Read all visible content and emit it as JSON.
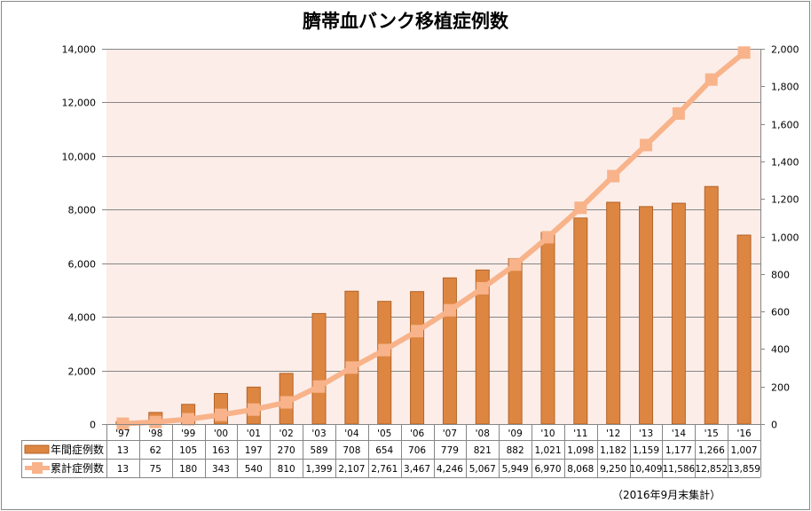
{
  "title": "臍帯血バンク移植症例数",
  "note": "（2016年9月末集計）",
  "colors": {
    "plot_bg": "#fcede8",
    "bar_fill": "#dd8642",
    "bar_stroke": "#b36327",
    "line": "#f8b38a",
    "grid": "#868686"
  },
  "chart_data": {
    "type": "bar+line",
    "title": "臍帯血バンク移植症例数",
    "categories": [
      "'97",
      "'98",
      "'99",
      "'00",
      "'01",
      "'02",
      "'03",
      "'04",
      "'05",
      "'06",
      "'07",
      "'08",
      "'09",
      "'10",
      "'11",
      "'12",
      "'13",
      "'14",
      "'15",
      "'16"
    ],
    "series": [
      {
        "name": "年間症例数",
        "type": "bar",
        "axis": "right",
        "values": [
          13,
          62,
          105,
          163,
          197,
          270,
          589,
          708,
          654,
          706,
          779,
          821,
          882,
          1021,
          1098,
          1182,
          1159,
          1177,
          1266,
          1007
        ],
        "labels": [
          "13",
          "62",
          "105",
          "163",
          "197",
          "270",
          "589",
          "708",
          "654",
          "706",
          "779",
          "821",
          "882",
          "1,021",
          "1,098",
          "1,182",
          "1,159",
          "1,177",
          "1,266",
          "1,007"
        ]
      },
      {
        "name": "累計症例数",
        "type": "line",
        "axis": "left",
        "values": [
          13,
          75,
          180,
          343,
          540,
          810,
          1399,
          2107,
          2761,
          3467,
          4246,
          5067,
          5949,
          6970,
          8068,
          9250,
          10409,
          11586,
          12852,
          13859
        ],
        "labels": [
          "13",
          "75",
          "180",
          "343",
          "540",
          "810",
          "1,399",
          "2,107",
          "2,761",
          "3,467",
          "4,246",
          "5,067",
          "5,949",
          "6,970",
          "8,068",
          "9,250",
          "10,409",
          "11,586",
          "12,852",
          "13,859"
        ]
      }
    ],
    "left_axis": {
      "ylim": [
        0,
        14000
      ],
      "ticks": [
        "0",
        "2,000",
        "4,000",
        "6,000",
        "8,000",
        "10,000",
        "12,000",
        "14,000"
      ]
    },
    "right_axis": {
      "ylim": [
        0,
        2000
      ],
      "ticks": [
        "0",
        "200",
        "400",
        "600",
        "800",
        "1,000",
        "1,200",
        "1,400",
        "1,600",
        "1,800",
        "2,000"
      ]
    },
    "grid": true,
    "legend": "data-table-left"
  }
}
